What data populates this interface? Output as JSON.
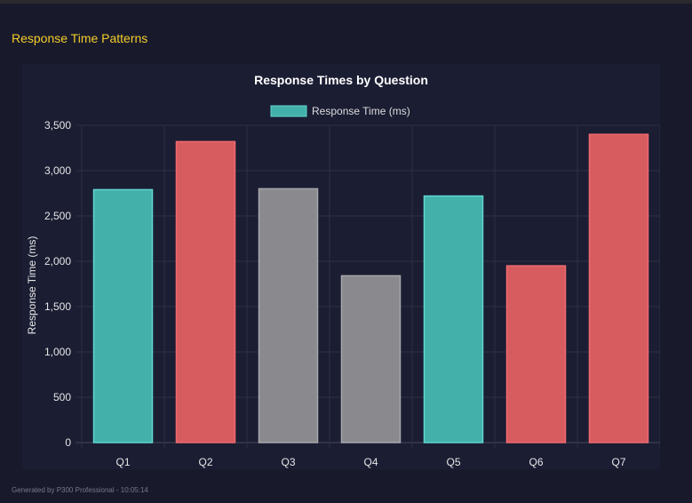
{
  "heading": "Response Time Patterns",
  "footer": "Generated by P300 Professional - 10:05:14",
  "colors": {
    "teal": "#43b0aa",
    "red": "#d65c60",
    "gray": "#8a898d",
    "heading": "#f5cc2a"
  },
  "chart_data": {
    "type": "bar",
    "title": "Response Times by Question",
    "legend": {
      "label": "Response Time (ms)",
      "placement": "top"
    },
    "ylabel": "Response Time (ms)",
    "xlabel": "",
    "ylim": [
      0,
      3500
    ],
    "yticks": [
      0,
      500,
      1000,
      1500,
      2000,
      2500,
      3000,
      3500
    ],
    "ytick_labels": [
      "0",
      "500",
      "1,000",
      "1,500",
      "2,000",
      "2,500",
      "3,000",
      "3,500"
    ],
    "grid": true,
    "categories": [
      "Q1",
      "Q2",
      "Q3",
      "Q4",
      "Q5",
      "Q6",
      "Q7"
    ],
    "values": [
      2790,
      3320,
      2800,
      1840,
      2720,
      1950,
      3400
    ],
    "bar_colors": [
      "teal",
      "red",
      "gray",
      "gray",
      "teal",
      "red",
      "red"
    ]
  }
}
